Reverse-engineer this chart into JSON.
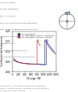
{
  "bg_color": "#ffffff",
  "conditions_lines": [
    "Contact: bille/disque",
    "Cylindre - Disque/Disque",
    "Rayon : 17,5/10 mm",
    "Pièce : acier XC-C45/acier (100Cr6) trempé revenu",
    "à 850 °C (acier de cémentation/finition de surface)",
    "Lubrification : huile (50HM)",
    "Température : 100 °C",
    "Vitesse : v = 2 000 t/min (≈3,7 m s⁻¹)",
    "↑ = contrainte jusqu'à rupture du film d'huile"
  ],
  "legend_labels": [
    "Sans traitement",
    "Avec nitruration couche γ' compacte",
    "Avec nitruration couche ε poreuse"
  ],
  "legend_colors": [
    "#222222",
    "#3333bb",
    "#cc2222"
  ],
  "xlabel": "Charge (N)",
  "ylabel": "Coefficient de frottement",
  "xlim": [
    0,
    1400
  ],
  "ylim": [
    0.0,
    0.2
  ],
  "xticks": [
    0,
    200,
    400,
    600,
    800,
    1000,
    1200,
    1400
  ],
  "yticks": [
    0.0,
    0.05,
    0.1,
    0.15,
    0.2
  ],
  "curve1_x": [
    50,
    100,
    150,
    200,
    250,
    300,
    350,
    400,
    450,
    500,
    550,
    600,
    650,
    700,
    750,
    800,
    850,
    900,
    950,
    1000,
    1050,
    1055,
    1100,
    1150,
    1200,
    1250,
    1300,
    1350,
    1400
  ],
  "curve1_y": [
    0.065,
    0.058,
    0.052,
    0.048,
    0.046,
    0.044,
    0.043,
    0.042,
    0.041,
    0.04,
    0.04,
    0.039,
    0.039,
    0.038,
    0.038,
    0.038,
    0.037,
    0.037,
    0.036,
    0.036,
    0.036,
    0.155,
    0.145,
    0.13,
    0.12,
    0.11,
    0.1,
    0.095,
    0.088
  ],
  "curve2_x": [
    50,
    100,
    150,
    200,
    250,
    300,
    350,
    400,
    450,
    500,
    550,
    600,
    650,
    700,
    750,
    800,
    850,
    900,
    950,
    1000,
    1050,
    1100,
    1105,
    1150,
    1200,
    1250,
    1300,
    1350
  ],
  "curve2_y": [
    0.06,
    0.055,
    0.05,
    0.047,
    0.045,
    0.043,
    0.042,
    0.041,
    0.04,
    0.039,
    0.039,
    0.038,
    0.038,
    0.037,
    0.037,
    0.037,
    0.036,
    0.036,
    0.035,
    0.035,
    0.035,
    0.035,
    0.155,
    0.14,
    0.13,
    0.12,
    0.11,
    0.1
  ],
  "curve3_x": [
    50,
    100,
    150,
    200,
    250,
    300,
    350,
    400,
    450,
    500,
    550,
    600,
    650,
    700,
    750,
    800,
    805,
    850,
    900
  ],
  "curve3_y": [
    0.058,
    0.052,
    0.049,
    0.047,
    0.045,
    0.043,
    0.042,
    0.041,
    0.04,
    0.039,
    0.039,
    0.038,
    0.038,
    0.037,
    0.037,
    0.036,
    0.155,
    0.14,
    0.13
  ],
  "caption_lines": [
    "Pour en savoir plus sur les tribomètres, on se reportera à l'article Réaliser des",
    "transactions tribomètres (lubrification, tribocorrosion, tribocorrosion au sens Re 0,1",
    "(2012)) de notre Monterieux méthodiques."
  ]
}
